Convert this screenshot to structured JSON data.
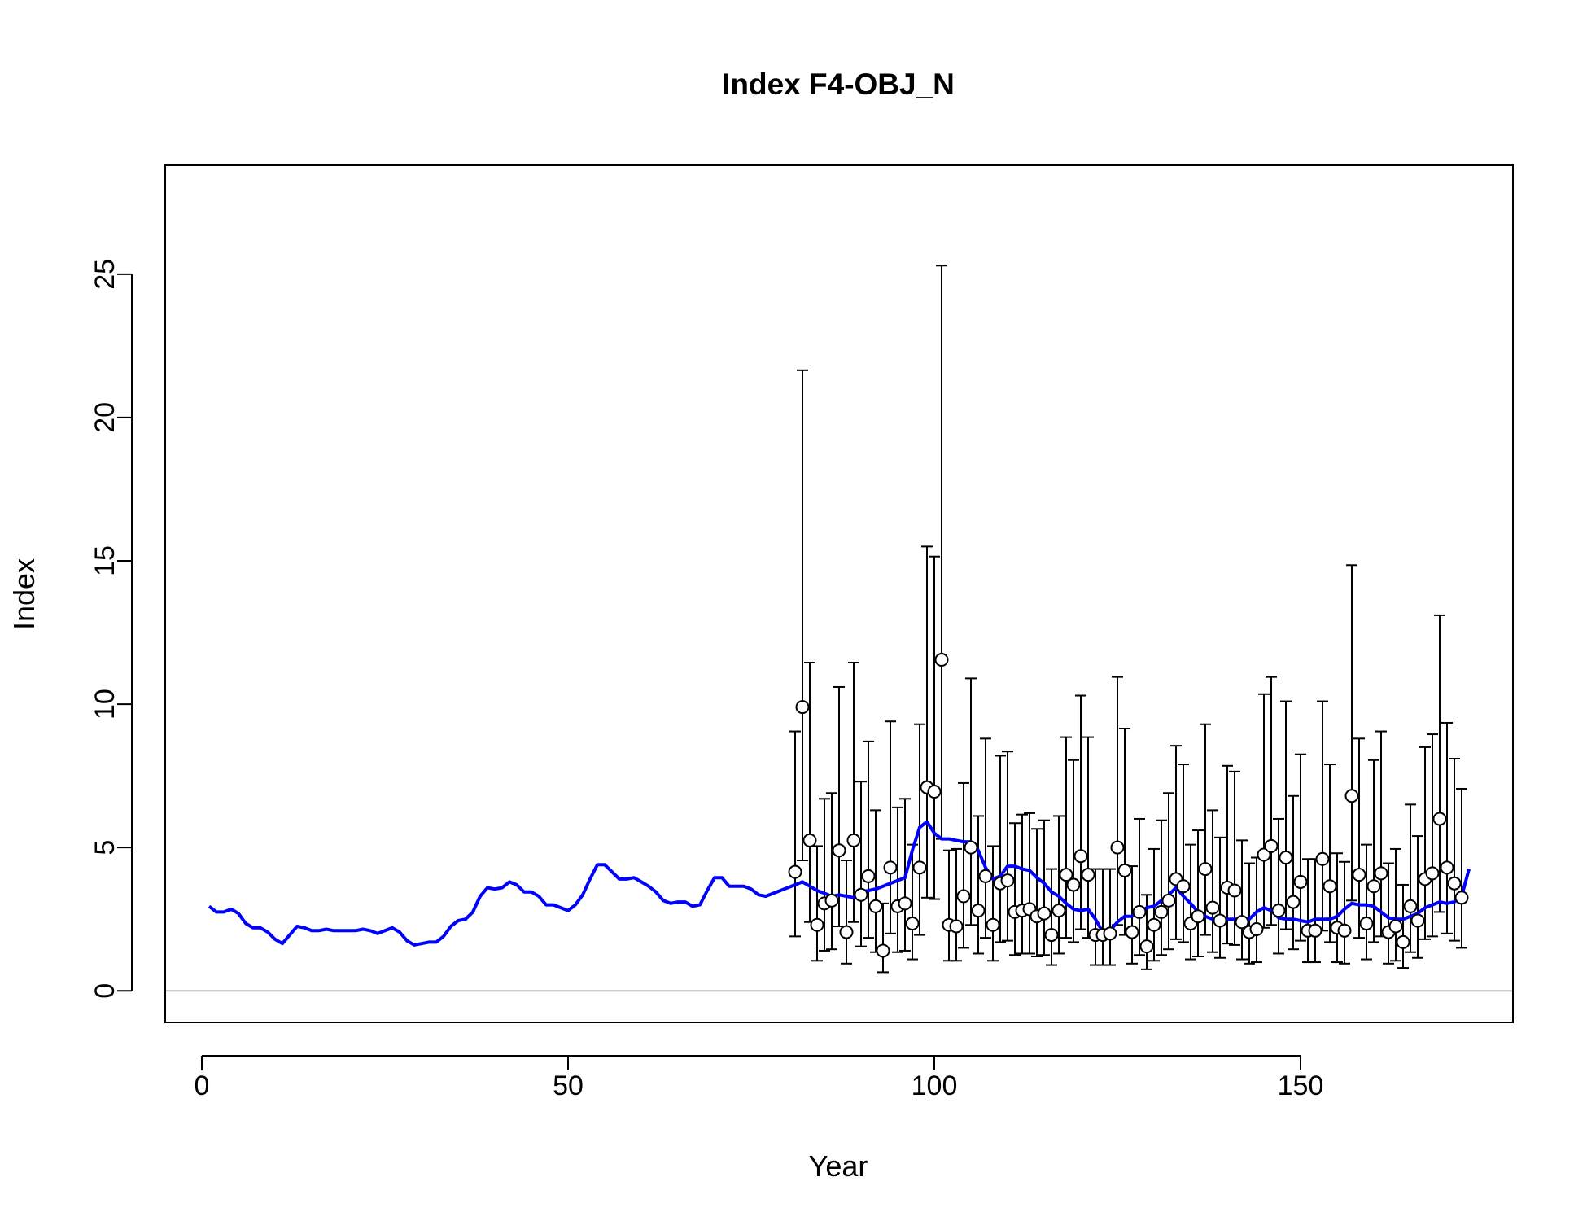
{
  "chart_data": {
    "type": "line",
    "title": "Index F4-OBJ_N",
    "xlabel": "Year",
    "ylabel": "Index",
    "xlim": [
      -5,
      179
    ],
    "ylim": [
      -1.1,
      28.8
    ],
    "x_ticks": [
      0,
      50,
      100,
      150
    ],
    "y_ticks": [
      0,
      5,
      10,
      15,
      20,
      25
    ],
    "grid": false,
    "reference_line": {
      "y": 0,
      "color": "#bebebe"
    },
    "colors": {
      "fit_line": "#0000ff",
      "observed": "#000000",
      "point_fill": "#ffffff"
    },
    "series": [
      {
        "type": "line",
        "x_start": 1,
        "values": [
          2.95,
          2.75,
          2.75,
          2.85,
          2.7,
          2.35,
          2.2,
          2.2,
          2.05,
          1.8,
          1.65,
          1.95,
          2.25,
          2.2,
          2.1,
          2.1,
          2.15,
          2.1,
          2.1,
          2.1,
          2.1,
          2.15,
          2.1,
          2.0,
          2.1,
          2.2,
          2.05,
          1.75,
          1.6,
          1.65,
          1.7,
          1.7,
          1.9,
          2.25,
          2.45,
          2.5,
          2.75,
          3.3,
          3.6,
          3.55,
          3.6,
          3.8,
          3.7,
          3.45,
          3.45,
          3.3,
          3.0,
          3.0,
          2.9,
          2.8,
          3.0,
          3.35,
          3.9,
          4.4,
          4.4,
          4.15,
          3.9,
          3.9,
          3.95,
          3.8,
          3.65,
          3.45,
          3.15,
          3.05,
          3.1,
          3.1,
          2.95,
          3.0,
          3.5,
          3.95,
          3.95,
          3.65,
          3.65,
          3.65,
          3.55,
          3.35,
          3.3,
          3.4,
          3.5,
          3.6,
          3.7,
          3.8,
          3.65,
          3.5,
          3.4,
          3.3,
          3.35,
          3.3,
          3.25,
          3.45,
          3.5,
          3.55,
          3.65,
          3.75,
          3.85,
          3.95,
          4.9,
          5.7,
          5.9,
          5.5,
          5.3,
          5.3,
          5.25,
          5.2,
          5.2,
          4.9,
          4.3,
          3.9,
          4.0,
          4.35,
          4.35,
          4.25,
          4.2,
          3.95,
          3.75,
          3.45,
          3.3,
          3.05,
          2.85,
          2.8,
          2.85,
          2.5,
          2.05,
          2.1,
          2.4,
          2.6,
          2.6,
          2.75,
          2.9,
          2.95,
          3.15,
          3.35,
          3.6,
          3.3,
          3.05,
          2.75,
          2.6,
          2.5,
          2.45,
          2.5,
          2.5,
          2.5,
          2.5,
          2.75,
          2.9,
          2.8,
          2.55,
          2.5,
          2.5,
          2.45,
          2.4,
          2.5,
          2.5,
          2.5,
          2.6,
          2.85,
          3.05,
          3.0,
          3.0,
          2.95,
          2.75,
          2.55,
          2.5,
          2.5,
          2.6,
          2.7,
          2.9,
          3.0,
          3.1,
          3.05,
          3.1,
          3.3,
          4.25
        ]
      },
      {
        "type": "scatter",
        "name": "observed",
        "x_start": 81,
        "values": [
          4.15,
          9.9,
          5.25,
          2.3,
          3.05,
          3.15,
          4.9,
          2.05,
          5.25,
          3.35,
          4.0,
          2.95,
          1.4,
          4.3,
          2.95,
          3.05,
          2.35,
          4.3,
          7.1,
          6.95,
          11.55,
          2.3,
          2.25,
          3.3,
          5.0,
          2.8,
          4.0,
          2.3,
          3.75,
          3.85,
          2.75,
          2.8,
          2.85,
          2.6,
          2.7,
          1.95,
          2.8,
          4.05,
          3.7,
          4.7,
          4.05,
          1.95,
          1.95,
          2.0,
          5.0,
          4.2,
          2.05,
          2.75,
          1.55,
          2.3,
          2.75,
          3.15,
          3.9,
          3.65,
          2.35,
          2.6,
          4.25,
          2.9,
          2.45,
          3.6,
          3.5,
          2.4,
          2.05,
          2.15,
          4.75,
          5.05,
          2.8,
          4.65,
          3.1,
          3.8,
          2.1,
          2.1,
          4.6,
          3.65,
          2.2,
          2.1,
          6.8,
          4.05,
          2.35,
          3.65,
          4.1,
          2.05,
          2.25,
          1.7,
          2.95,
          2.45,
          3.9,
          4.1,
          6.0,
          4.3,
          3.75,
          3.25
        ],
        "upper": [
          9.05,
          21.65,
          11.45,
          5.05,
          6.7,
          6.9,
          10.6,
          4.55,
          11.45,
          7.3,
          8.7,
          6.3,
          3.05,
          9.4,
          6.4,
          6.7,
          5.1,
          9.3,
          15.5,
          15.15,
          25.3,
          4.9,
          4.95,
          7.25,
          10.9,
          6.1,
          8.8,
          5.05,
          8.2,
          8.35,
          5.85,
          6.15,
          6.2,
          5.65,
          5.95,
          4.25,
          6.1,
          8.85,
          8.05,
          10.3,
          8.85,
          4.25,
          4.25,
          4.25,
          10.95,
          9.15,
          4.35,
          6.0,
          3.35,
          4.95,
          5.95,
          6.9,
          8.55,
          7.9,
          5.1,
          5.6,
          9.3,
          6.3,
          5.35,
          7.85,
          7.65,
          5.25,
          4.45,
          4.65,
          10.35,
          10.95,
          6.0,
          10.1,
          6.8,
          8.25,
          4.6,
          4.6,
          10.1,
          7.9,
          4.8,
          4.5,
          14.85,
          8.8,
          5.1,
          8.05,
          9.05,
          4.45,
          4.95,
          3.7,
          6.5,
          5.4,
          8.5,
          8.95,
          13.1,
          9.35,
          8.1,
          7.05
        ],
        "lower": [
          1.9,
          4.55,
          2.4,
          1.05,
          1.4,
          1.45,
          2.25,
          0.95,
          2.4,
          1.55,
          1.85,
          1.35,
          0.65,
          2.0,
          1.35,
          1.4,
          1.1,
          1.95,
          3.25,
          3.2,
          5.3,
          1.05,
          1.05,
          1.5,
          2.3,
          1.3,
          1.85,
          1.05,
          1.7,
          1.75,
          1.25,
          1.3,
          1.3,
          1.2,
          1.25,
          0.9,
          1.3,
          1.85,
          1.7,
          2.15,
          1.85,
          0.9,
          0.9,
          0.9,
          2.3,
          1.95,
          0.95,
          1.25,
          0.75,
          1.05,
          1.25,
          1.45,
          1.8,
          1.7,
          1.1,
          1.2,
          1.95,
          1.35,
          1.15,
          1.65,
          1.6,
          1.1,
          0.95,
          1.0,
          2.2,
          2.3,
          1.3,
          2.15,
          1.45,
          1.75,
          1.0,
          1.0,
          2.1,
          1.7,
          1.0,
          0.95,
          3.15,
          1.85,
          1.1,
          1.7,
          1.9,
          0.95,
          1.05,
          0.8,
          1.35,
          1.15,
          1.8,
          1.9,
          2.75,
          2.0,
          1.75,
          1.5
        ]
      }
    ]
  }
}
